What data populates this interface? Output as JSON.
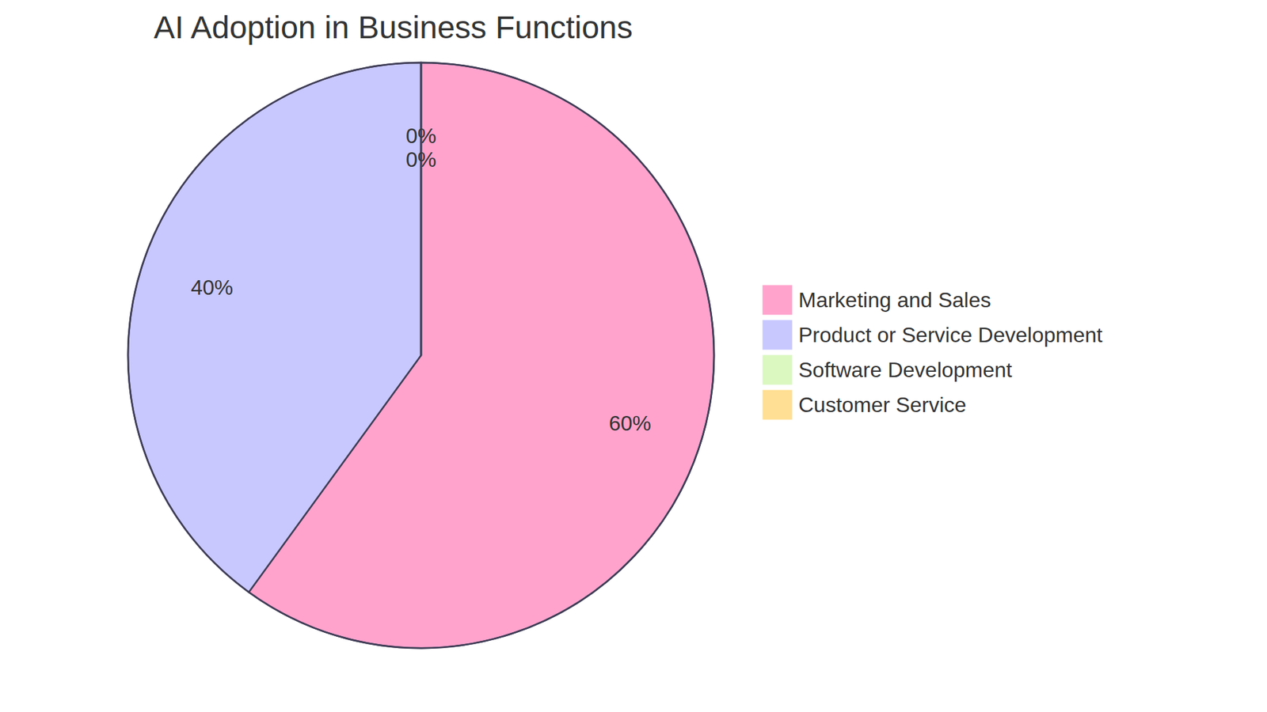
{
  "chart_data": {
    "type": "pie",
    "title": "AI Adoption in Business Functions",
    "categories": [
      "Marketing and Sales",
      "Product or Service Development",
      "Software Development",
      "Customer Service"
    ],
    "values": [
      60,
      40,
      0,
      0
    ],
    "value_labels": [
      "60%",
      "40%",
      "0%",
      "0%"
    ],
    "colors": [
      "#ffa3cd",
      "#c8c8ff",
      "#daf8c0",
      "#ffdf93"
    ],
    "data_labels": true,
    "legend": "right"
  }
}
